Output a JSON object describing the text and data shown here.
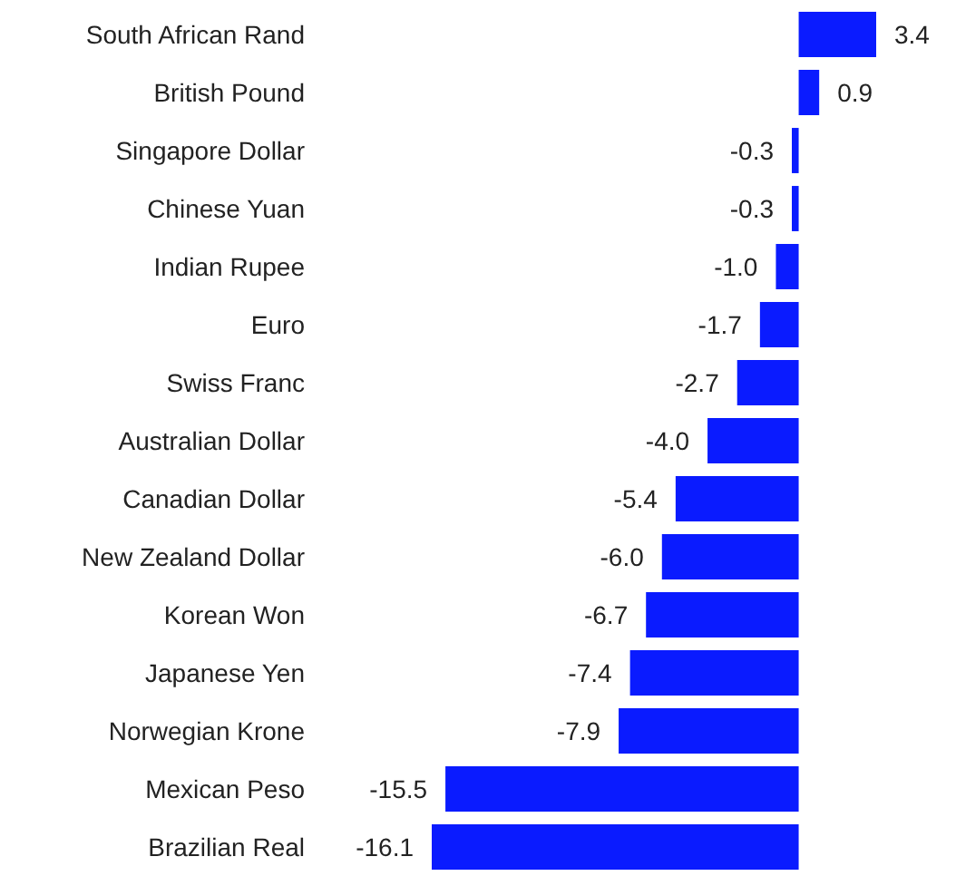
{
  "chart_data": {
    "type": "bar",
    "orientation": "horizontal",
    "categories": [
      "South African Rand",
      "British Pound",
      "Singapore Dollar",
      "Chinese Yuan",
      "Indian Rupee",
      "Euro",
      "Swiss Franc",
      "Australian Dollar",
      "Canadian Dollar",
      "New Zealand Dollar",
      "Korean Won",
      "Japanese Yen",
      "Norwegian Krone",
      "Mexican Peso",
      "Brazilian Real"
    ],
    "values": [
      3.4,
      0.9,
      -0.3,
      -0.3,
      -1.0,
      -1.7,
      -2.7,
      -4.0,
      -5.4,
      -6.0,
      -6.7,
      -7.4,
      -7.9,
      -15.5,
      -16.1
    ],
    "value_labels": [
      "3.4",
      "0.9",
      "-0.3",
      "-0.3",
      "-1.0",
      "-1.7",
      "-2.7",
      "-4.0",
      "-5.4",
      "-6.0",
      "-6.7",
      "-7.4",
      "-7.9",
      "-15.5",
      "-16.1"
    ],
    "color": "#0a1bff"
  }
}
